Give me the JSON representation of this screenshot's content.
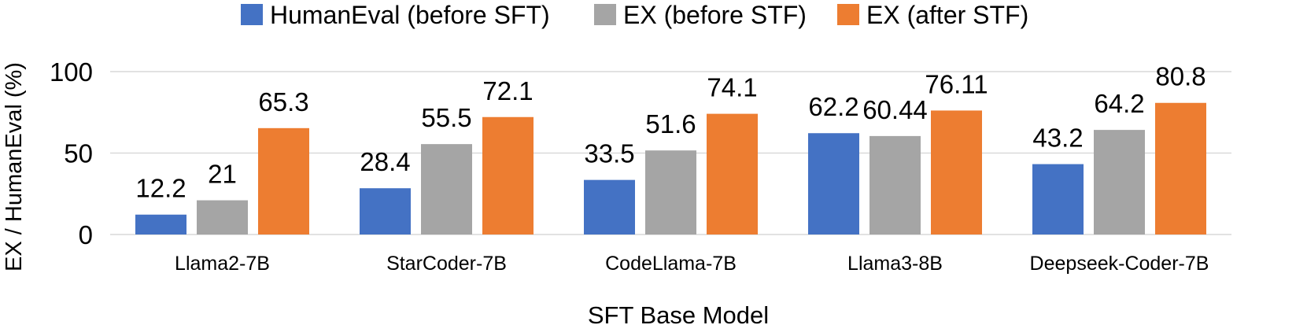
{
  "chart_data": {
    "type": "bar",
    "title": "",
    "xlabel": "SFT Base Model",
    "ylabel": "EX / HumanEval (%)",
    "ylim": [
      0,
      100
    ],
    "yticks": [
      "0",
      "50",
      "100"
    ],
    "ytick_values": [
      0,
      50,
      100
    ],
    "grid": true,
    "legend_position": "top-center",
    "categories": [
      "Llama2-7B",
      "StarCoder-7B",
      "CodeLlama-7B",
      "Llama3-8B",
      "Deepseek-Coder-7B"
    ],
    "series": [
      {
        "name": "HumanEval (before SFT)",
        "color": "#4472C4",
        "values": [
          12.2,
          28.4,
          33.5,
          62.2,
          43.2
        ],
        "labels": [
          "12.2",
          "28.4",
          "33.5",
          "62.2",
          "43.2"
        ]
      },
      {
        "name": "EX (before STF)",
        "color": "#A5A5A5",
        "values": [
          21,
          55.5,
          51.6,
          60.44,
          64.2
        ],
        "labels": [
          "21",
          "55.5",
          "51.6",
          "60.44",
          "64.2"
        ]
      },
      {
        "name": "EX (after STF)",
        "color": "#ED7D31",
        "values": [
          65.3,
          72.1,
          74.1,
          76.11,
          80.8
        ],
        "labels": [
          "65.3",
          "72.1",
          "74.1",
          "76.11",
          "80.8"
        ]
      }
    ],
    "gridline_color": "#D9D9D9"
  }
}
